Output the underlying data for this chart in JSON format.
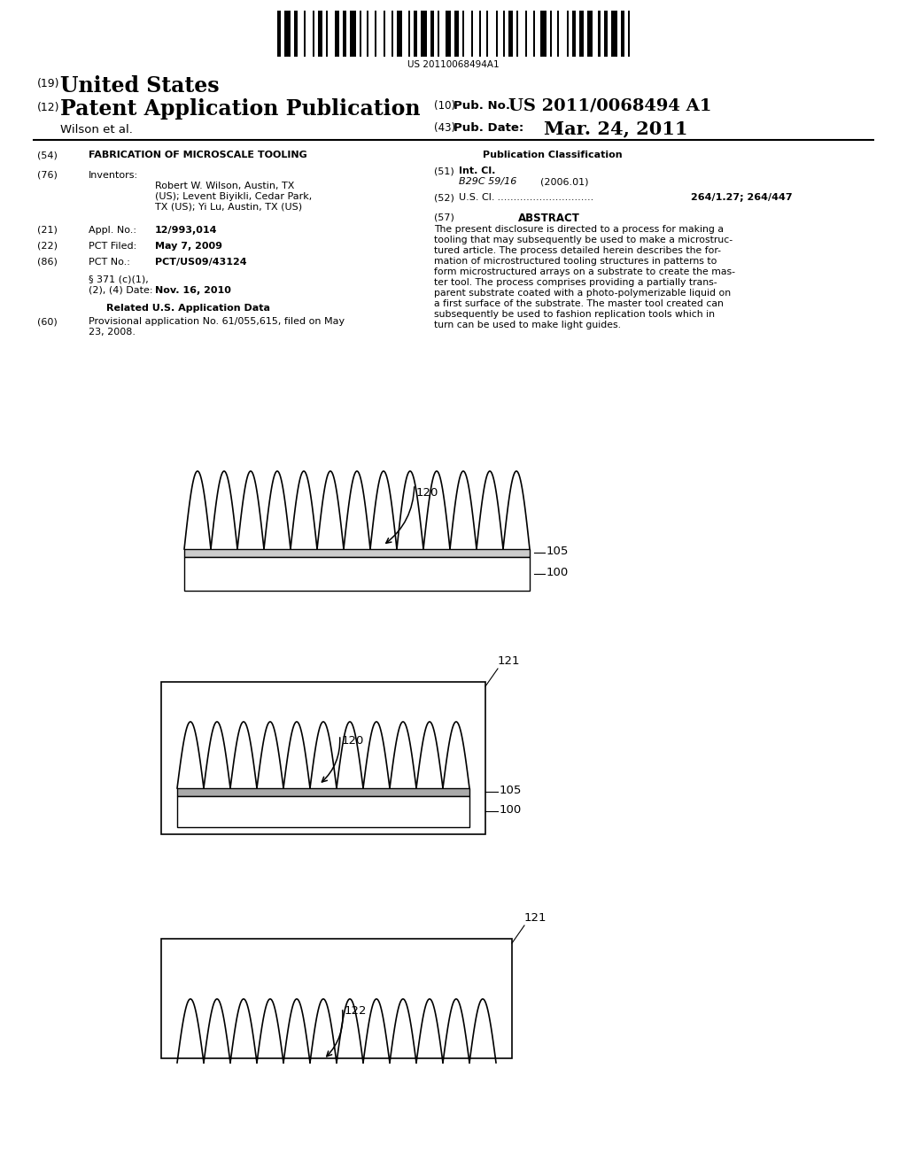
{
  "bg_color": "#ffffff",
  "barcode_text": "US 20110068494A1",
  "patent_number": "US 2011/0068494 A1",
  "pub_date": "Mar. 24, 2011",
  "header_line1_label": "(19)",
  "header_line1_text": "United States",
  "header_line2_label": "(12)",
  "header_line2_text": "Patent Application Publication",
  "header_right1_label": "(10)",
  "header_right1_text": "Pub. No.:",
  "header_right2_label": "(43)",
  "header_right2_text": "Pub. Date:",
  "author": "Wilson et al.",
  "section54_label": "(54)",
  "section54_title": "FABRICATION OF MICROSCALE TOOLING",
  "section76_label": "(76)",
  "section76_title": "Inventors:",
  "section21_label": "(21)",
  "section21_title": "Appl. No.:",
  "section21_content": "12/993,014",
  "section22_label": "(22)",
  "section22_title": "PCT Filed:",
  "section22_content": "May 7, 2009",
  "section86_label": "(86)",
  "section86_title": "PCT No.:",
  "section86_content": "PCT/US09/43124",
  "section371_date": "Nov. 16, 2010",
  "related_title": "Related U.S. Application Data",
  "section60_label": "(60)",
  "pub_class_title": "Publication Classification",
  "section51_label": "(51)",
  "section51_title": "Int. Cl.",
  "section51_class": "B29C 59/16",
  "section51_year": "(2006.01)",
  "section52_label": "(52)",
  "section52_title": "U.S. Cl.",
  "section52_content": "264/1.27; 264/447",
  "section57_label": "(57)",
  "section57_title": "ABSTRACT",
  "diag1_label120": "120",
  "diag1_label105": "105",
  "diag1_label100": "100",
  "diag2_label120": "120",
  "diag2_label121": "121",
  "diag2_label105": "105",
  "diag2_label100": "100",
  "diag3_label121": "121",
  "diag3_label122": "122"
}
